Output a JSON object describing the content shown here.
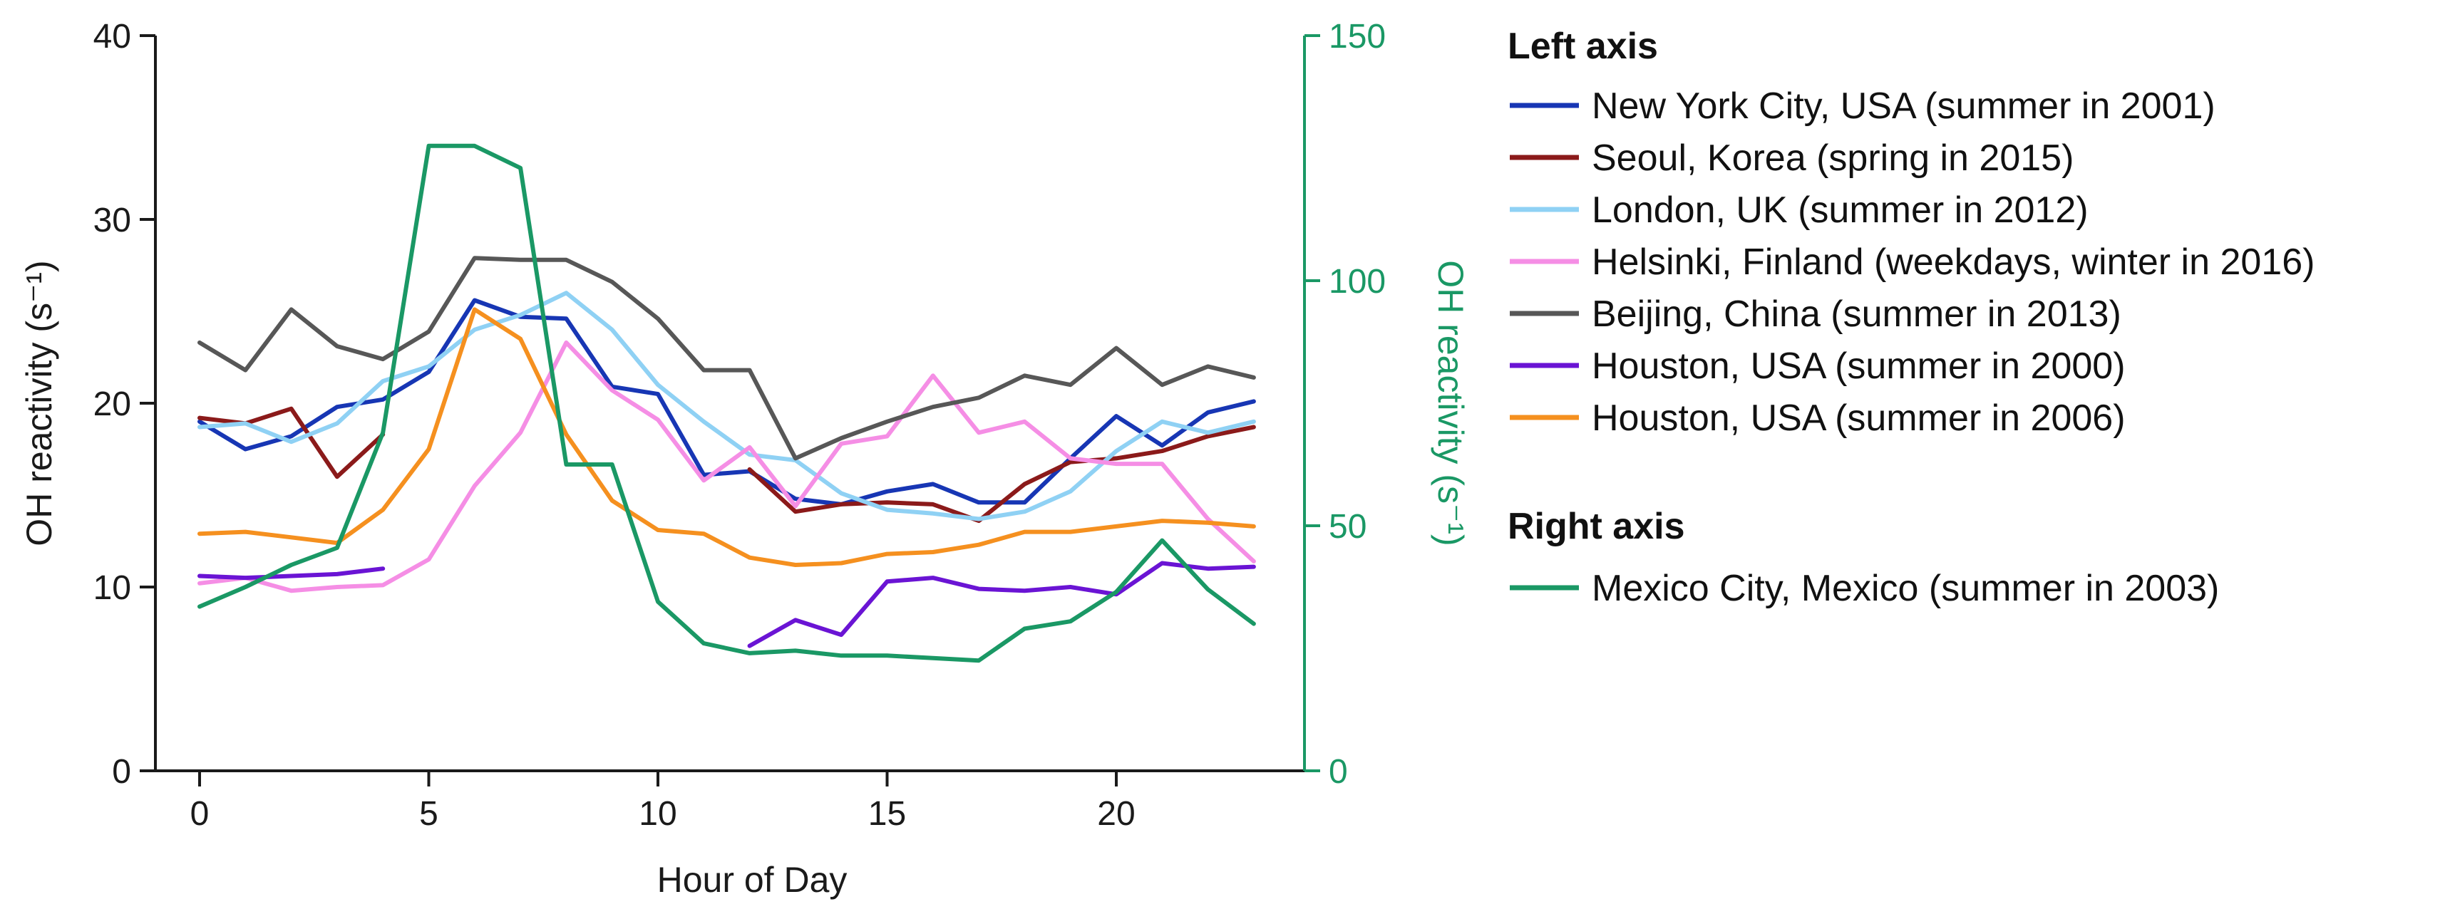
{
  "chart_data": {
    "type": "line",
    "xlabel": "Hour of Day",
    "ylabel": "OH reactivity (s⁻¹)",
    "y2label": "OH reactivity  (s⁻¹)",
    "xlim": [
      -1,
      24
    ],
    "ylim": [
      0,
      40
    ],
    "y2lim": [
      0,
      150
    ],
    "xticks": [
      0,
      5,
      10,
      15,
      20
    ],
    "yticks": [
      0,
      10,
      20,
      30,
      40
    ],
    "y2ticks": [
      0,
      50,
      100,
      150
    ],
    "grid": false,
    "legend_position": "right",
    "legend_groups": [
      "Left axis",
      "Right axis"
    ],
    "series": [
      {
        "name": "New York City, USA (summer in 2001)",
        "axis": "left",
        "color": "#1736b4",
        "x": [
          0,
          1,
          2,
          3,
          4,
          5,
          6,
          7,
          8,
          9,
          10,
          11,
          12,
          13,
          14,
          15,
          16,
          17,
          18,
          19,
          20,
          21,
          22,
          23
        ],
        "values": [
          19.0,
          17.5,
          18.2,
          19.8,
          20.2,
          21.7,
          25.6,
          24.7,
          24.6,
          20.9,
          20.5,
          16.1,
          16.3,
          14.8,
          14.5,
          15.2,
          15.6,
          14.6,
          14.6,
          17.0,
          19.3,
          17.7,
          19.5,
          20.1
        ]
      },
      {
        "name": "Seoul, Korea (spring in 2015)",
        "axis": "left",
        "color": "#8b1a1a",
        "x": [
          0,
          1,
          2,
          3,
          4,
          null,
          12,
          13,
          14,
          15,
          16,
          17,
          18,
          19,
          20,
          21,
          22,
          23
        ],
        "values": [
          19.2,
          18.9,
          19.7,
          16.0,
          18.3,
          null,
          16.4,
          14.1,
          14.5,
          14.6,
          14.5,
          13.6,
          15.6,
          16.8,
          17.0,
          17.4,
          18.2,
          18.7
        ]
      },
      {
        "name": "London, UK (summer in 2012)",
        "axis": "left",
        "color": "#8fd1f4",
        "x": [
          0,
          1,
          2,
          3,
          4,
          5,
          6,
          7,
          8,
          9,
          10,
          11,
          12,
          13,
          14,
          15,
          16,
          17,
          18,
          19,
          20,
          21,
          22,
          23
        ],
        "values": [
          18.7,
          18.9,
          17.9,
          18.9,
          21.2,
          22.0,
          24.0,
          24.8,
          26.0,
          24.0,
          21.0,
          19.0,
          17.2,
          16.9,
          15.1,
          14.2,
          14.0,
          13.7,
          14.1,
          15.2,
          17.4,
          19.0,
          18.4,
          19.0
        ]
      },
      {
        "name": "Helsinki, Finland (weekdays, winter in 2016)",
        "axis": "left",
        "color": "#f58ee5",
        "x": [
          0,
          1,
          2,
          3,
          4,
          5,
          6,
          7,
          8,
          9,
          10,
          11,
          12,
          13,
          14,
          15,
          16,
          17,
          18,
          19,
          20,
          21,
          22,
          23
        ],
        "values": [
          10.2,
          10.5,
          9.8,
          10.0,
          10.1,
          11.5,
          15.5,
          18.4,
          23.3,
          20.7,
          19.1,
          15.8,
          17.6,
          14.4,
          17.8,
          18.2,
          21.5,
          18.4,
          19.0,
          17.0,
          16.7,
          16.7,
          13.7,
          11.4
        ]
      },
      {
        "name": "Beijing, China (summer in 2013)",
        "axis": "left",
        "color": "#575757",
        "x": [
          0,
          1,
          2,
          3,
          4,
          5,
          6,
          7,
          8,
          9,
          10,
          11,
          12,
          13,
          14,
          15,
          16,
          17,
          18,
          19,
          20,
          21,
          22,
          23
        ],
        "values": [
          23.3,
          21.8,
          25.1,
          23.1,
          22.4,
          23.9,
          27.9,
          27.8,
          27.8,
          26.6,
          24.6,
          21.8,
          21.8,
          17.0,
          18.1,
          19.0,
          19.8,
          20.3,
          21.5,
          21.0,
          23.0,
          21.0,
          22.0,
          21.4
        ]
      },
      {
        "name": "Houston, USA  (summer in 2000)",
        "axis": "left",
        "color": "#6a14d4",
        "x": [
          0,
          1,
          2,
          3,
          4,
          null,
          12,
          13,
          14,
          15,
          16,
          17,
          18,
          19,
          20,
          21,
          22,
          23
        ],
        "values": [
          10.6,
          10.5,
          10.6,
          10.7,
          11.0,
          null,
          6.8,
          8.2,
          7.4,
          10.3,
          10.5,
          9.9,
          9.8,
          10.0,
          9.6,
          11.3,
          11.0,
          11.1
        ]
      },
      {
        "name": "Houston, USA  (summer in 2006)",
        "axis": "left",
        "color": "#f5901f",
        "x": [
          0,
          1,
          2,
          3,
          4,
          5,
          6,
          7,
          8,
          9,
          10,
          11,
          12,
          13,
          14,
          15,
          16,
          17,
          18,
          19,
          20,
          21,
          22,
          23
        ],
        "values": [
          12.9,
          13.0,
          12.7,
          12.4,
          14.2,
          17.5,
          25.1,
          23.5,
          18.3,
          14.7,
          13.1,
          12.9,
          11.6,
          11.2,
          11.3,
          11.8,
          11.9,
          12.3,
          13.0,
          13.0,
          13.3,
          13.6,
          13.5,
          13.3
        ]
      },
      {
        "name": "Mexico City, Mexico (summer in 2003)",
        "axis": "right",
        "color": "#1a9865",
        "x": [
          0,
          1,
          2,
          3,
          4,
          5,
          6,
          7,
          8,
          9,
          10,
          11,
          12,
          13,
          14,
          15,
          16,
          17,
          18,
          19,
          20,
          21,
          22,
          23
        ],
        "values": [
          33.5,
          37.5,
          42.0,
          45.5,
          69.0,
          127.5,
          127.5,
          123.0,
          62.5,
          62.5,
          34.5,
          26.0,
          24.0,
          24.5,
          23.5,
          23.5,
          23.0,
          22.5,
          29.0,
          30.5,
          36.5,
          47.0,
          37.0,
          30.0
        ]
      }
    ]
  }
}
